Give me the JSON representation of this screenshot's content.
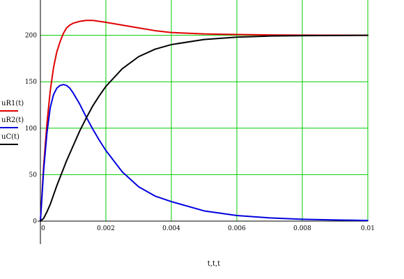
{
  "chart_data": {
    "type": "line",
    "title": "",
    "xlabel": "t,t,t",
    "ylabel": "",
    "xlim": [
      0,
      0.01
    ],
    "ylim": [
      0,
      238
    ],
    "grid": true,
    "grid_color": "#00cc00",
    "legend_position": "left",
    "x_ticks": [
      0,
      0.002,
      0.004,
      0.006,
      0.008,
      0.01
    ],
    "x_tick_labels": [
      "0",
      "0.002",
      "0.004",
      "0.006",
      "0.008",
      "0.01"
    ],
    "y_ticks": [
      0,
      50,
      100,
      150,
      200
    ],
    "y_tick_labels": [
      "0",
      "50",
      "100",
      "150",
      "200"
    ],
    "series": [
      {
        "name": "uR1(t)",
        "color": "#e00000",
        "x": [
          0,
          0.0001,
          0.0002,
          0.0003,
          0.0004,
          0.0005,
          0.0006,
          0.0007,
          0.0008,
          0.0009,
          0.001,
          0.0012,
          0.0014,
          0.0016,
          0.0018,
          0.002,
          0.0025,
          0.003,
          0.0035,
          0.004,
          0.005,
          0.006,
          0.007,
          0.008,
          0.009,
          0.01
        ],
        "y": [
          0,
          60,
          105,
          140,
          165,
          182,
          193,
          202,
          208,
          211,
          213,
          215,
          216,
          216,
          215,
          214,
          211,
          208,
          205,
          203,
          201.5,
          200.8,
          200.4,
          200.2,
          200.1,
          200
        ]
      },
      {
        "name": "uR2(t)",
        "color": "#0000e0",
        "x": [
          0,
          0.0001,
          0.0002,
          0.0003,
          0.0004,
          0.0005,
          0.0006,
          0.0007,
          0.0008,
          0.0009,
          0.001,
          0.0012,
          0.0014,
          0.0016,
          0.0018,
          0.002,
          0.0025,
          0.003,
          0.0035,
          0.004,
          0.005,
          0.006,
          0.007,
          0.008,
          0.009,
          0.01
        ],
        "y": [
          0,
          55,
          95,
          122,
          136,
          143,
          146,
          147,
          146,
          143,
          138,
          126,
          112,
          99,
          87,
          76,
          53,
          37,
          27,
          21,
          11,
          6,
          3.5,
          2,
          1.2,
          0.7
        ]
      },
      {
        "name": "uC(t)",
        "color": "#000000",
        "x": [
          0,
          0.0001,
          0.0002,
          0.0003,
          0.0004,
          0.0005,
          0.0006,
          0.0007,
          0.0008,
          0.0009,
          0.001,
          0.0012,
          0.0014,
          0.0016,
          0.0018,
          0.002,
          0.0025,
          0.003,
          0.0035,
          0.004,
          0.005,
          0.006,
          0.007,
          0.008,
          0.009,
          0.01
        ],
        "y": [
          0,
          3,
          10,
          18,
          28,
          38,
          47,
          56,
          65,
          73,
          81,
          97,
          111,
          124,
          135,
          145,
          164,
          177,
          185,
          190,
          195.5,
          198,
          199.2,
          199.6,
          199.8,
          200
        ]
      }
    ]
  }
}
